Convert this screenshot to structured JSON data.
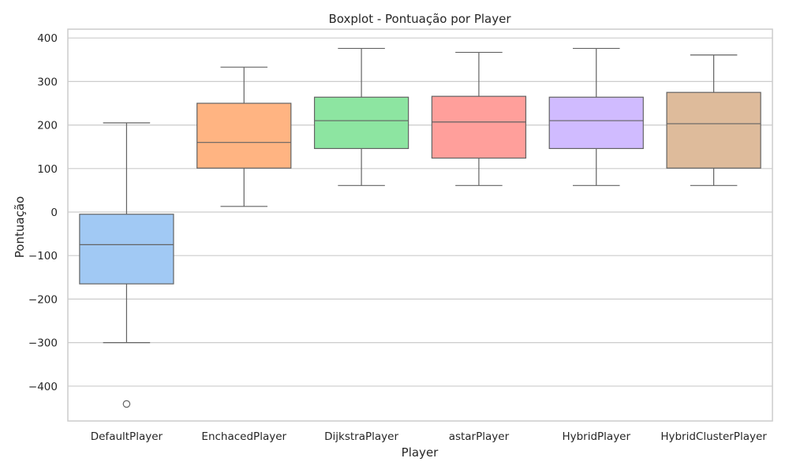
{
  "chart_data": {
    "type": "box",
    "title": "Boxplot - Pontuação por Player",
    "xlabel": "Player",
    "ylabel": "Pontuação",
    "ylim": [
      -480,
      420
    ],
    "yticks": [
      400,
      300,
      200,
      100,
      0,
      -100,
      -200,
      -300,
      -400
    ],
    "ytick_labels": [
      "400",
      "300",
      "200",
      "100",
      "0",
      "−100",
      "−200",
      "−300",
      "−400"
    ],
    "grid": true,
    "categories": [
      "DefaultPlayer",
      "EnchacedPlayer",
      "DijkstraPlayer",
      "astarPlayer",
      "HybridPlayer",
      "HybridClusterPlayer"
    ],
    "boxes": [
      {
        "name": "DefaultPlayer",
        "whisker_low": -300,
        "q1": -165,
        "median": -75,
        "q3": -5,
        "whisker_high": 205,
        "outliers": [
          -441
        ],
        "color": "#a1c9f4"
      },
      {
        "name": "EnchacedPlayer",
        "whisker_low": 13,
        "q1": 101,
        "median": 160,
        "q3": 250,
        "whisker_high": 333,
        "outliers": [],
        "color": "#ffb482"
      },
      {
        "name": "DijkstraPlayer",
        "whisker_low": 61,
        "q1": 146,
        "median": 210,
        "q3": 264,
        "whisker_high": 376,
        "outliers": [],
        "color": "#8de5a1"
      },
      {
        "name": "astarPlayer",
        "whisker_low": 61,
        "q1": 124,
        "median": 207,
        "q3": 266,
        "whisker_high": 367,
        "outliers": [],
        "color": "#ff9f9b"
      },
      {
        "name": "HybridPlayer",
        "whisker_low": 61,
        "q1": 146,
        "median": 210,
        "q3": 264,
        "whisker_high": 376,
        "outliers": [],
        "color": "#d0bbff"
      },
      {
        "name": "HybridClusterPlayer",
        "whisker_low": 61,
        "q1": 101,
        "median": 203,
        "q3": 275,
        "whisker_high": 361,
        "outliers": [],
        "color": "#debb9b"
      }
    ]
  }
}
